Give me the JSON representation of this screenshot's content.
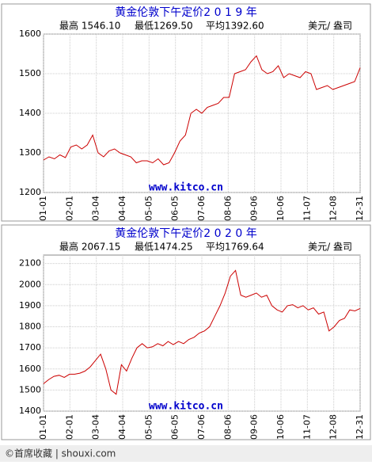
{
  "chart_data": [
    {
      "type": "line",
      "title": "黄金伦敦下午定价2 0 1 9 年",
      "high": "最高 1546.10",
      "low": "最低1269.50",
      "average": "平均1392.60",
      "unit": "美元/ 盎司",
      "watermark": "www.kitco.cn",
      "xticks": [
        "01-01",
        "02-01",
        "03-04",
        "04-04",
        "05-05",
        "06-05",
        "07-06",
        "08-06",
        "09-06",
        "10-06",
        "11-07",
        "12-08",
        "12-31"
      ],
      "values": [
        1282,
        1290,
        1285,
        1295,
        1288,
        1315,
        1320,
        1310,
        1320,
        1345,
        1300,
        1290,
        1305,
        1310,
        1300,
        1295,
        1290,
        1275,
        1280,
        1280,
        1275,
        1285,
        1270,
        1275,
        1300,
        1330,
        1345,
        1400,
        1410,
        1400,
        1415,
        1420,
        1425,
        1440,
        1440,
        1500,
        1505,
        1510,
        1530,
        1545,
        1510,
        1500,
        1505,
        1520,
        1490,
        1500,
        1495,
        1490,
        1505,
        1500,
        1460,
        1465,
        1470,
        1460,
        1465,
        1470,
        1475,
        1480,
        1515
      ],
      "color": "#cc0000",
      "ylim": [
        1200,
        1600
      ],
      "yticks": [
        1200,
        1300,
        1400,
        1500,
        1600
      ],
      "grid": true
    },
    {
      "type": "line",
      "title": "黄金伦敦下午定价2 0 2 0 年",
      "high": "最高 2067.15",
      "low": "最低1474.25",
      "average": "平均1769.64",
      "unit": "美元/ 盎司",
      "watermark": "www.kitco.cn",
      "xticks": [
        "01-01",
        "02-01",
        "03-04",
        "04-04",
        "05-05",
        "06-05",
        "07-06",
        "08-06",
        "09-06",
        "10-06",
        "11-07",
        "12-08",
        "12-31"
      ],
      "values": [
        1530,
        1550,
        1565,
        1570,
        1560,
        1575,
        1575,
        1580,
        1590,
        1610,
        1640,
        1670,
        1600,
        1500,
        1480,
        1620,
        1590,
        1650,
        1700,
        1720,
        1700,
        1705,
        1720,
        1710,
        1730,
        1715,
        1730,
        1720,
        1740,
        1750,
        1770,
        1780,
        1800,
        1850,
        1900,
        1960,
        2040,
        2067,
        1950,
        1940,
        1950,
        1960,
        1940,
        1950,
        1900,
        1880,
        1870,
        1900,
        1905,
        1890,
        1900,
        1880,
        1890,
        1860,
        1870,
        1780,
        1800,
        1830,
        1840,
        1880,
        1875,
        1887
      ],
      "color": "#cc0000",
      "ylim": [
        1400,
        2140
      ],
      "yticks": [
        1400,
        1500,
        1600,
        1700,
        1800,
        1900,
        2000,
        2100
      ],
      "grid": true
    }
  ],
  "footer": "©首席收藏 | shouxi.com"
}
